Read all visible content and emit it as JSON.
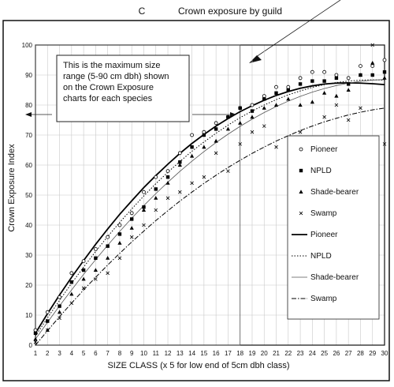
{
  "chart_data": {
    "type": "line",
    "panel_letter": "C",
    "title": "Crown exposure by guild",
    "xlabel": "SIZE CLASS (x 5 for low end of 5cm dbh class)",
    "ylabel": "Crown Exposure Index",
    "xlim": [
      1,
      30
    ],
    "ylim": [
      0,
      100
    ],
    "x_ticks": [
      1,
      2,
      3,
      4,
      5,
      6,
      7,
      8,
      9,
      10,
      11,
      12,
      13,
      14,
      15,
      16,
      17,
      18,
      19,
      20,
      21,
      22,
      23,
      24,
      25,
      26,
      27,
      28,
      29,
      30
    ],
    "y_ticks": [
      0,
      10,
      20,
      30,
      40,
      50,
      60,
      70,
      80,
      90,
      100
    ],
    "grid": true,
    "legend_position": "right",
    "annotation": {
      "lines": [
        "This is the maximum size",
        "range (5-90 cm dbh) shown",
        "on the Crown Exposure",
        "charts for each species"
      ],
      "range_x": [
        1,
        18
      ]
    },
    "x": [
      1,
      2,
      3,
      4,
      5,
      6,
      7,
      8,
      9,
      10,
      11,
      12,
      13,
      14,
      15,
      16,
      17,
      18,
      19,
      20,
      21,
      22,
      23,
      24,
      25,
      26,
      27,
      28,
      29,
      30
    ],
    "series": [
      {
        "name": "Pioneer",
        "marker": "circle",
        "values": [
          5,
          11,
          16,
          24,
          28,
          32,
          36,
          40,
          44,
          51,
          56,
          58,
          64,
          70,
          71,
          74,
          76,
          79,
          80,
          83,
          86,
          86,
          89,
          91,
          91,
          90,
          89,
          93,
          93,
          95
        ]
      },
      {
        "name": "NPLD",
        "marker": "square",
        "values": [
          4,
          8,
          13,
          21,
          25,
          29,
          33,
          37,
          42,
          46,
          52,
          56,
          61,
          66,
          70,
          72,
          76,
          79,
          78,
          82,
          84,
          85,
          87,
          88,
          88,
          89,
          87,
          90,
          90,
          91
        ]
      },
      {
        "name": "Shade-bearer",
        "marker": "triangle",
        "values": [
          2,
          5,
          11,
          17,
          22,
          25,
          29,
          34,
          39,
          45,
          49,
          54,
          60,
          63,
          66,
          68,
          72,
          74,
          76,
          79,
          80,
          82,
          80,
          81,
          84,
          83,
          85,
          90,
          94,
          89
        ]
      },
      {
        "name": "Swamp",
        "marker": "x",
        "values": [
          1,
          5,
          9,
          14,
          19,
          22,
          24,
          29,
          36,
          40,
          45,
          49,
          51,
          54,
          56,
          64,
          58,
          67,
          71,
          73,
          66,
          85,
          71,
          66,
          76,
          80,
          75,
          79,
          100,
          67
        ]
      }
    ],
    "fits": [
      {
        "name": "Pioneer",
        "style": "solid",
        "values": [
          4,
          10.5,
          16.7,
          22.6,
          28.2,
          33.6,
          38.7,
          43.6,
          48.1,
          52.5,
          56.5,
          60.3,
          63.9,
          67.2,
          70.2,
          73,
          75.5,
          77.8,
          79.8,
          81.6,
          83.2,
          84.5,
          85.6,
          86.4,
          87,
          87.3,
          87.4,
          87.3,
          87.1,
          86.8
        ]
      },
      {
        "name": "NPLD",
        "style": "dotted",
        "values": [
          3,
          9.1,
          14.9,
          20.6,
          26,
          31.2,
          36.2,
          40.9,
          45.4,
          49.7,
          53.8,
          57.6,
          61.2,
          64.6,
          67.7,
          70.6,
          73.3,
          75.8,
          78,
          80,
          81.8,
          83.4,
          84.7,
          85.9,
          86.8,
          87.5,
          88,
          88.3,
          88.4,
          88.3
        ]
      },
      {
        "name": "Shade-bearer",
        "style": "thin",
        "values": [
          2,
          7.6,
          13.1,
          18.4,
          23.6,
          28.5,
          33.3,
          37.9,
          42.3,
          46.5,
          50.5,
          54.3,
          57.9,
          61.3,
          64.5,
          67.5,
          70.3,
          72.9,
          75.3,
          77.5,
          79.5,
          81.3,
          82.9,
          84.3,
          85.5,
          86.5,
          87.3,
          87.9,
          88.3,
          88.5
        ]
      },
      {
        "name": "Swamp",
        "style": "dashdot",
        "values": [
          0,
          4.8,
          9.5,
          14,
          18.4,
          22.6,
          26.7,
          30.6,
          34.4,
          38,
          41.5,
          44.8,
          48,
          51,
          53.9,
          56.6,
          59.2,
          61.6,
          63.9,
          66,
          68,
          69.8,
          71.5,
          73,
          74.4,
          75.6,
          76.7,
          77.6,
          78.4,
          79
        ]
      }
    ]
  }
}
